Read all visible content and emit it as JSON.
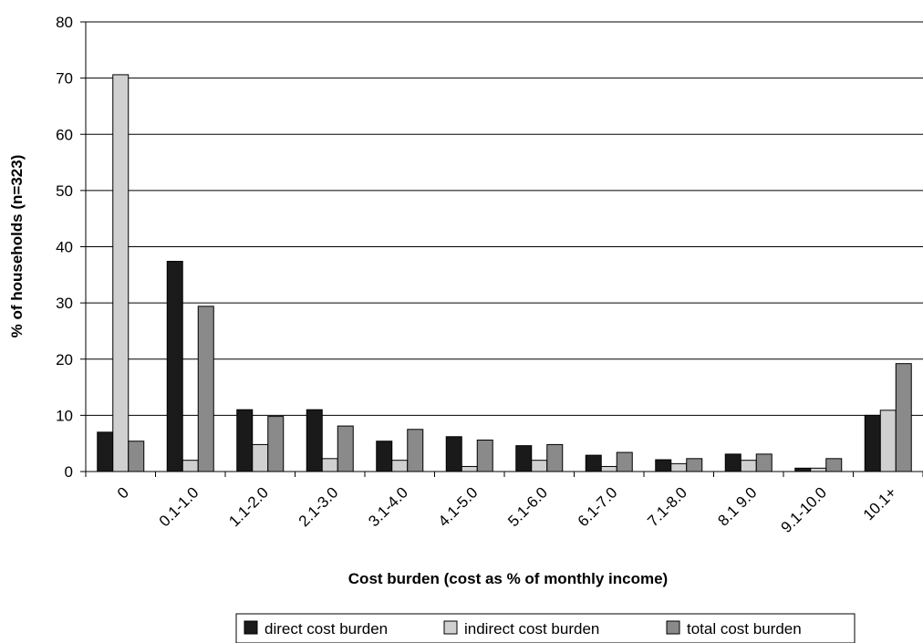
{
  "chart_data": {
    "type": "bar",
    "categories": [
      "0",
      "0.1-1.0",
      "1.1-2.0",
      "2.1-3.0",
      "3.1-4.0",
      "4.1-5.0",
      "5.1-6.0",
      "6.1-7.0",
      "7.1-8.0",
      "8.1 9.0",
      "9.1-10.0",
      "10.1+"
    ],
    "series": [
      {
        "name": "direct cost burden",
        "color": "#1a1a1a",
        "values": [
          7.0,
          37.4,
          11.0,
          11.0,
          5.4,
          6.2,
          4.6,
          2.9,
          2.1,
          3.1,
          0.6,
          10.0
        ]
      },
      {
        "name": "indirect cost burden",
        "color": "#d0d0d0",
        "values": [
          70.6,
          2.0,
          4.8,
          2.3,
          2.0,
          0.9,
          2.0,
          0.9,
          1.4,
          2.0,
          0.6,
          10.9
        ]
      },
      {
        "name": "total cost burden",
        "color": "#8a8a8a",
        "values": [
          5.4,
          29.4,
          9.8,
          8.1,
          7.5,
          5.6,
          4.8,
          3.4,
          2.3,
          3.1,
          2.3,
          19.2
        ]
      }
    ],
    "xlabel": "Cost burden (cost as % of monthly income)",
    "ylabel": "% of households (n=323)",
    "ylim": [
      0,
      80
    ],
    "yticks": [
      0,
      10,
      20,
      30,
      40,
      50,
      60,
      70,
      80
    ],
    "grid": true,
    "legend_position": "bottom"
  }
}
